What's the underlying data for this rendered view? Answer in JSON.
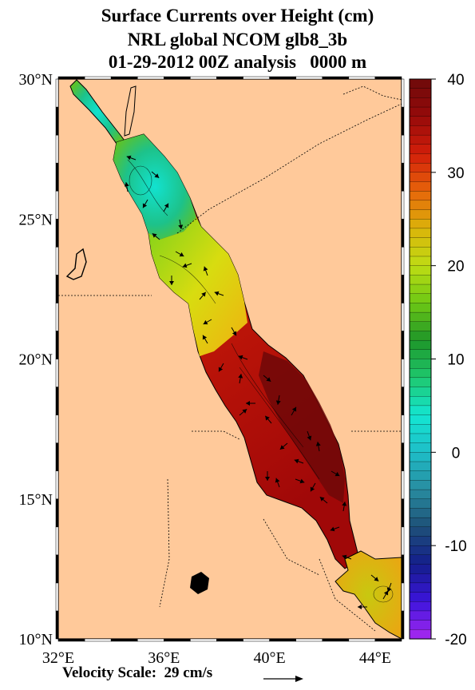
{
  "title": {
    "line1": "Surface Currents over Height (cm)",
    "line2": "NRL global NCOM glb8_3b",
    "line3": "01-29-2012 00Z analysis   0000 m"
  },
  "axes": {
    "lat_labels": [
      "30°N",
      "25°N",
      "20°N",
      "15°N",
      "10°N"
    ],
    "lat_values": [
      30,
      25,
      20,
      15,
      10
    ],
    "lon_labels": [
      "32°E",
      "36°E",
      "40°E",
      "44°E"
    ],
    "lon_values": [
      32,
      36,
      40,
      44
    ],
    "lon_range": [
      32,
      45
    ],
    "lat_range": [
      10,
      30
    ]
  },
  "colorbar": {
    "labels": [
      "40",
      "30",
      "20",
      "10",
      "0",
      "-10",
      "-20"
    ],
    "range": [
      -20,
      40
    ]
  },
  "velocity_scale": {
    "label": "Velocity Scale:  29 cm/s"
  },
  "colors": {
    "land": "#ffc99a",
    "coast": "#000000"
  }
}
